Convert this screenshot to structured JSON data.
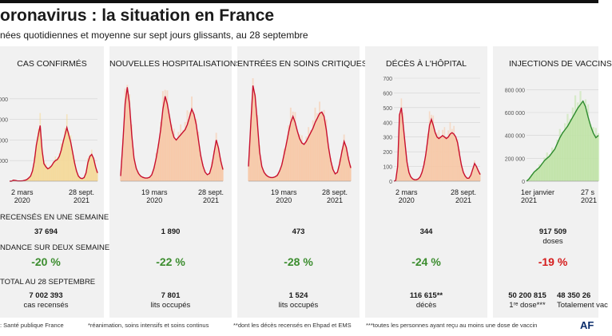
{
  "header": {
    "title": "oronavirus : la situation en France",
    "subtitle": "nées quotidiennes et moyenne sur sept jours glissants, au 28 septembre"
  },
  "sections": {
    "recensés": "RECENSÉS EN UNE SEMAINE",
    "tendance": "NDANCE SUR DEUX SEMAINES",
    "total": "TOTAL AU 28 SEPTEMBRE"
  },
  "chart_data": [
    {
      "type": "area",
      "title": "CAS CONFIRMÉS",
      "x_labels": [
        {
          "date": "2 mars",
          "year": "2020"
        },
        {
          "date": "28 sept.",
          "year": "2021"
        }
      ],
      "y_ticks": [
        "0 000",
        "0 000",
        "0 000",
        "0 000"
      ],
      "y_tick_values": [
        20000,
        40000,
        60000,
        80000
      ],
      "ylim": [
        0,
        100000
      ],
      "series": [
        {
          "name": "moyenne sur sept jours",
          "values": [
            0,
            0,
            1000,
            700,
            300,
            200,
            200,
            500,
            900,
            1500,
            3000,
            5000,
            10000,
            20000,
            35000,
            45000,
            54000,
            30000,
            17000,
            14000,
            12000,
            13000,
            15000,
            18000,
            20000,
            21000,
            24000,
            30000,
            38000,
            45000,
            52000,
            45000,
            38000,
            28000,
            18000,
            10000,
            5000,
            3000,
            2500,
            3500,
            8000,
            18000,
            24000,
            26000,
            22000,
            14000,
            8000
          ]
        }
      ],
      "week": "37 694",
      "trend": "-20 %",
      "trend_color": "green",
      "total_value": "7 002 393",
      "total_unit": "cas recensés"
    },
    {
      "type": "area",
      "title": "NOUVELLES HOSPITALISATIONS",
      "x_labels": [
        {
          "date": "19 mars",
          "year": "2020"
        },
        {
          "date": "28 sept.",
          "year": "2021"
        }
      ],
      "ylim": [
        0,
        4000
      ],
      "series": [
        {
          "name": "moyenne sur sept jours",
          "values": [
            200,
            1500,
            3000,
            3650,
            3000,
            1800,
            900,
            500,
            300,
            200,
            150,
            120,
            120,
            150,
            250,
            500,
            900,
            1400,
            2000,
            2800,
            3300,
            3000,
            2500,
            2000,
            1700,
            1600,
            1700,
            1800,
            1900,
            2000,
            2200,
            2500,
            2800,
            2600,
            2200,
            1600,
            1000,
            600,
            350,
            250,
            300,
            600,
            1100,
            1600,
            1300,
            800,
            450
          ]
        }
      ],
      "week": "1 890",
      "trend": "-22 %",
      "trend_color": "green",
      "total_value": "7 801",
      "total_unit": "lits occupés"
    },
    {
      "type": "area",
      "title": "ENTRÉES EN SOINS CRITIQUES*",
      "x_labels": [
        {
          "date": "19 mars",
          "year": "2020"
        },
        {
          "date": "28 sept.",
          "year": "2021"
        }
      ],
      "ylim": [
        0,
        700
      ],
      "series": [
        {
          "name": "moyenne sur sept jours",
          "values": [
            100,
            380,
            650,
            580,
            400,
            200,
            100,
            60,
            40,
            30,
            25,
            25,
            30,
            40,
            70,
            110,
            180,
            250,
            330,
            400,
            440,
            400,
            340,
            290,
            260,
            250,
            270,
            300,
            330,
            360,
            400,
            430,
            460,
            470,
            440,
            350,
            230,
            140,
            80,
            50,
            60,
            120,
            200,
            270,
            230,
            150,
            90
          ]
        }
      ],
      "week": "473",
      "trend": "-28 %",
      "trend_color": "green",
      "total_value": "1 524",
      "total_unit": "lits occupés"
    },
    {
      "type": "area",
      "title": "DÉCÈS À L'HÔPITAL",
      "x_labels": [
        {
          "date": "2 mars",
          "year": "2020"
        },
        {
          "date": "28 sept.",
          "year": "2021"
        }
      ],
      "y_ticks": [
        "700",
        "600",
        "500",
        "400",
        "300",
        "200",
        "100",
        "0"
      ],
      "y_tick_values": [
        700,
        600,
        500,
        400,
        300,
        200,
        100,
        0
      ],
      "ylim": [
        0,
        700
      ],
      "series": [
        {
          "name": "moyenne sur sept jours",
          "values": [
            0,
            5,
            100,
            450,
            500,
            380,
            250,
            130,
            60,
            30,
            15,
            10,
            10,
            15,
            30,
            60,
            110,
            180,
            280,
            380,
            420,
            380,
            330,
            300,
            290,
            300,
            310,
            300,
            290,
            300,
            320,
            330,
            320,
            300,
            260,
            180,
            110,
            60,
            35,
            20,
            20,
            40,
            80,
            120,
            100,
            70,
            45
          ]
        }
      ],
      "week": "344",
      "trend": "-24 %",
      "trend_color": "green",
      "total_value": "116 615**",
      "total_unit": "décès"
    },
    {
      "type": "area",
      "title": "INJECTIONS DE VACCINS",
      "x_labels": [
        {
          "date": "1er janvier",
          "year": "2021"
        },
        {
          "date": "27 s",
          "year": "2021"
        }
      ],
      "y_ticks": [
        "800 000",
        "600 000",
        "400 000",
        "200 000",
        "0"
      ],
      "y_tick_values": [
        800000,
        600000,
        400000,
        200000,
        0
      ],
      "ylim": [
        0,
        900000
      ],
      "series": [
        {
          "name": "moyenne sur sept jours",
          "values": [
            0,
            20000,
            50000,
            80000,
            100000,
            120000,
            150000,
            180000,
            200000,
            220000,
            250000,
            280000,
            330000,
            380000,
            420000,
            450000,
            480000,
            520000,
            560000,
            600000,
            640000,
            670000,
            700000,
            650000,
            560000,
            480000,
            420000,
            380000,
            400000
          ]
        }
      ],
      "week": "917 509",
      "week_unit": "doses",
      "trend": "-19 %",
      "trend_color": "red",
      "total_left_value": "50 200 815",
      "total_left_unit": "1ʳᵉ dose***",
      "total_right_value": "48 350 26",
      "total_right_unit": "Totalement vac"
    }
  ],
  "footer": {
    "source": ": Santé publique France",
    "note1": "*réanimation, soins intensifs et soins continus",
    "note2": "**dont les décès recensés en Ehpad et EMS",
    "note3": "***toutes les personnes ayant reçu au moins une dose de vaccin",
    "logo": "AF"
  },
  "colors": {
    "cases_fill": "#f5d896",
    "cases_line": "#c8102e",
    "hosp_fill": "#f7c7a4",
    "hosp_line": "#c8102e",
    "vacc_fill": "#bfe3a6",
    "vacc_line": "#2e8b2e",
    "trend_green": "#3c8d2f",
    "trend_red": "#d51c1c"
  }
}
